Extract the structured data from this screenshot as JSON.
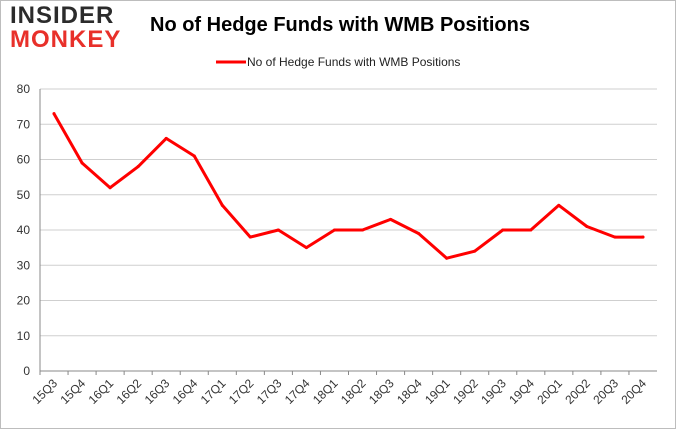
{
  "logo": {
    "line1": "INSIDER",
    "line2": "MONKEY"
  },
  "colors": {
    "series": "#ff0000",
    "grid": "#cfcfcf",
    "axis": "#888888",
    "logo_accent": "#e8302a"
  },
  "chart_data": {
    "type": "line",
    "title": "No of Hedge Funds with WMB Positions",
    "xlabel": "",
    "ylabel": "",
    "ylim": [
      0,
      80
    ],
    "yticks": [
      0,
      10,
      20,
      30,
      40,
      50,
      60,
      70,
      80
    ],
    "grid": true,
    "legend_position": "top-center",
    "categories": [
      "15Q3",
      "15Q4",
      "16Q1",
      "16Q2",
      "16Q3",
      "16Q4",
      "17Q1",
      "17Q2",
      "17Q3",
      "17Q4",
      "18Q1",
      "18Q2",
      "18Q3",
      "18Q4",
      "19Q1",
      "19Q2",
      "19Q3",
      "19Q4",
      "20Q1",
      "20Q2",
      "20Q3",
      "20Q4"
    ],
    "series": [
      {
        "name": "No of Hedge Funds with WMB Positions",
        "color": "#ff0000",
        "values": [
          73,
          59,
          52,
          58,
          66,
          61,
          47,
          38,
          40,
          35,
          40,
          40,
          43,
          39,
          32,
          34,
          40,
          40,
          47,
          41,
          38,
          38
        ]
      }
    ]
  }
}
